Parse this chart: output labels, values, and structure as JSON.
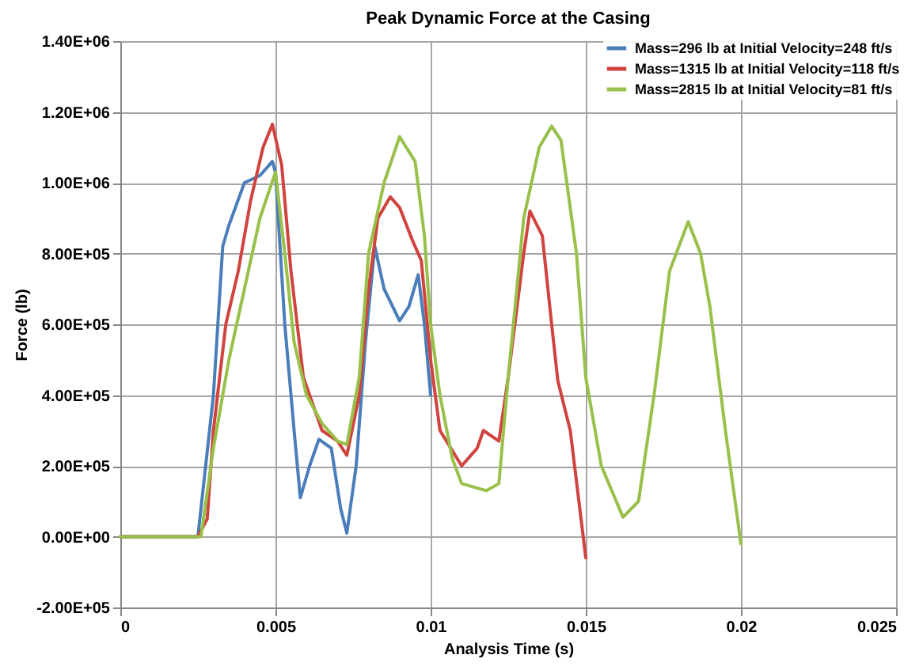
{
  "chart_data": {
    "type": "line",
    "title": "Peak Dynamic Force at the Casing",
    "xlabel": "Analysis Time (s)",
    "ylabel": "Force (lb)",
    "xlim": [
      0,
      0.025
    ],
    "xticks": [
      0,
      0.005,
      0.01,
      0.015,
      0.02,
      0.025
    ],
    "ylim": [
      -200000,
      1400000
    ],
    "yticks": [
      {
        "value": -200000,
        "label": "-2.00E+05"
      },
      {
        "value": 0,
        "label": "0.00E+00"
      },
      {
        "value": 200000,
        "label": "2.00E+05"
      },
      {
        "value": 400000,
        "label": "4.00E+05"
      },
      {
        "value": 600000,
        "label": "6.00E+05"
      },
      {
        "value": 800000,
        "label": "8.00E+05"
      },
      {
        "value": 1000000,
        "label": "1.00E+06"
      },
      {
        "value": 1200000,
        "label": "1.20E+06"
      },
      {
        "value": 1400000,
        "label": "1.40E+06"
      }
    ],
    "grid": true,
    "legend": "top right",
    "marker": "none",
    "line_style": "solid",
    "series": [
      {
        "name": "Mass=296 lb at Initial Velocity=248 ft/s",
        "color": "#4a7ebb",
        "x": [
          0,
          0.0025,
          0.003,
          0.0033,
          0.0035,
          0.004,
          0.0045,
          0.0049,
          0.005,
          0.0053,
          0.0056,
          0.0058,
          0.0061,
          0.0064,
          0.0068,
          0.0071,
          0.0073,
          0.0076,
          0.0079,
          0.0082,
          0.0085,
          0.009,
          0.0093,
          0.0096,
          0.0098,
          0.01
        ],
        "values": [
          0,
          0,
          400000,
          820000,
          880000,
          1000000,
          1020000,
          1060000,
          1030000,
          600000,
          300000,
          110000,
          200000,
          275000,
          250000,
          80000,
          10000,
          200000,
          550000,
          820000,
          700000,
          610000,
          650000,
          740000,
          600000,
          400000
        ]
      },
      {
        "name": "Mass=1315 lb at Initial Velocity=118 ft/s",
        "color": "#d0433e",
        "x": [
          0,
          0.0025,
          0.0028,
          0.003,
          0.0034,
          0.0038,
          0.0042,
          0.0046,
          0.0049,
          0.0052,
          0.0055,
          0.0059,
          0.0065,
          0.007,
          0.0073,
          0.0077,
          0.008,
          0.0083,
          0.0087,
          0.009,
          0.0094,
          0.0097,
          0.01,
          0.0103,
          0.011,
          0.0115,
          0.0117,
          0.0122,
          0.0125,
          0.013,
          0.0132,
          0.0136,
          0.0139,
          0.0141,
          0.0145,
          0.015
        ],
        "values": [
          0,
          0,
          50000,
          300000,
          600000,
          750000,
          950000,
          1100000,
          1165000,
          1050000,
          750000,
          450000,
          300000,
          270000,
          230000,
          400000,
          700000,
          900000,
          960000,
          930000,
          840000,
          780000,
          500000,
          300000,
          200000,
          250000,
          300000,
          270000,
          450000,
          800000,
          920000,
          850000,
          600000,
          440000,
          300000,
          -60000
        ]
      },
      {
        "name": "Mass=2815 lb at Initial Velocity=81 ft/s",
        "color": "#98c04a",
        "x": [
          0,
          0.0026,
          0.003,
          0.0035,
          0.004,
          0.0045,
          0.005,
          0.0053,
          0.0056,
          0.006,
          0.0065,
          0.007,
          0.0073,
          0.0077,
          0.008,
          0.0085,
          0.009,
          0.0095,
          0.0098,
          0.01,
          0.0103,
          0.0107,
          0.011,
          0.0118,
          0.0122,
          0.0125,
          0.013,
          0.0135,
          0.0139,
          0.0142,
          0.0147,
          0.015,
          0.0155,
          0.0162,
          0.0167,
          0.0172,
          0.0177,
          0.0183,
          0.0187,
          0.019,
          0.0195,
          0.02
        ],
        "values": [
          0,
          0,
          250000,
          500000,
          700000,
          900000,
          1030000,
          800000,
          550000,
          400000,
          320000,
          270000,
          260000,
          450000,
          800000,
          1000000,
          1130000,
          1060000,
          850000,
          600000,
          400000,
          220000,
          150000,
          130000,
          150000,
          450000,
          900000,
          1100000,
          1160000,
          1120000,
          800000,
          450000,
          200000,
          55000,
          100000,
          400000,
          750000,
          890000,
          800000,
          650000,
          300000,
          -20000
        ]
      }
    ]
  }
}
